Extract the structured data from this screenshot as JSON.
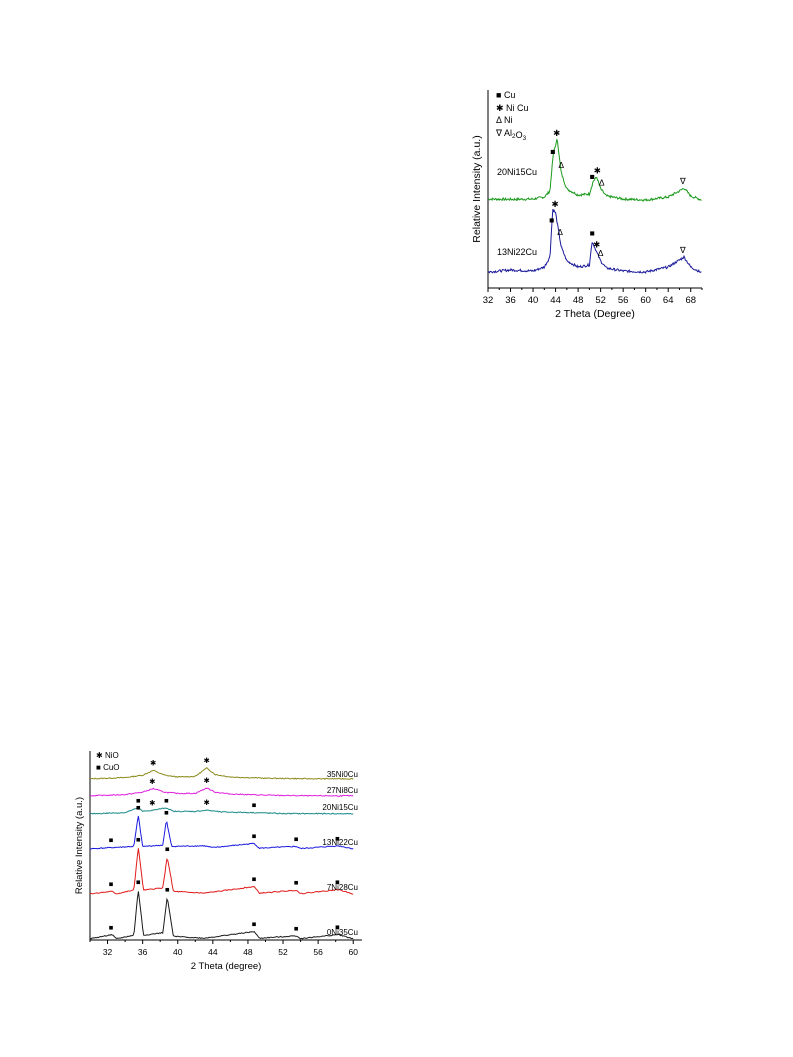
{
  "figures": [
    {
      "id": "fig1",
      "chart_data": {
        "type": "line",
        "title": "",
        "xlabel": "2 Theta (Degree)",
        "ylabel": "Relative Intensity (a.u.)",
        "xlim": [
          32,
          70
        ],
        "xticks": [
          "32",
          "36",
          "40",
          "44",
          "48",
          "52",
          "56",
          "60",
          "64",
          "68"
        ],
        "legend": [
          {
            "marker": "■",
            "label": "Cu"
          },
          {
            "marker": "✱",
            "label": "Ni Cu"
          },
          {
            "marker": "Δ",
            "label": "Ni"
          },
          {
            "marker": "∇",
            "label": "Al2O3"
          }
        ],
        "series": [
          {
            "name": "20Ni15Cu",
            "color": "#1a9a1a",
            "points": [
              [
                32,
                0.3
              ],
              [
                36,
                0.28
              ],
              [
                40,
                0.3
              ],
              [
                42,
                0.4
              ],
              [
                43,
                0.7
              ],
              [
                43.6,
                2.6
              ],
              [
                44.3,
                3.3
              ],
              [
                45,
                1.6
              ],
              [
                46,
                0.8
              ],
              [
                48,
                0.5
              ],
              [
                50,
                0.55
              ],
              [
                50.7,
                1.2
              ],
              [
                51.3,
                1.4
              ],
              [
                52,
                0.8
              ],
              [
                53,
                0.45
              ],
              [
                56,
                0.3
              ],
              [
                60,
                0.25
              ],
              [
                64,
                0.4
              ],
              [
                66,
                0.7
              ],
              [
                66.8,
                0.85
              ],
              [
                68,
                0.45
              ],
              [
                70,
                0.25
              ]
            ],
            "markers": [
              {
                "x": 43.5,
                "symbol": "■"
              },
              {
                "x": 44.2,
                "symbol": "✱"
              },
              {
                "x": 45.0,
                "symbol": "Δ"
              },
              {
                "x": 50.5,
                "symbol": "■"
              },
              {
                "x": 51.4,
                "symbol": "✱"
              },
              {
                "x": 52.2,
                "symbol": "Δ"
              },
              {
                "x": 66.6,
                "symbol": "∇"
              }
            ]
          },
          {
            "name": "13Ni22Cu",
            "color": "#1a1a9a",
            "points": [
              [
                32,
                0.15
              ],
              [
                36,
                0.25
              ],
              [
                40,
                0.2
              ],
              [
                42,
                0.4
              ],
              [
                43,
                0.9
              ],
              [
                43.5,
                3.3
              ],
              [
                44,
                3.1
              ],
              [
                45,
                1.4
              ],
              [
                46,
                0.7
              ],
              [
                48,
                0.4
              ],
              [
                50,
                0.5
              ],
              [
                50.5,
                1.7
              ],
              [
                51.2,
                1.2
              ],
              [
                52,
                0.7
              ],
              [
                53,
                0.35
              ],
              [
                56,
                0.2
              ],
              [
                60,
                0.15
              ],
              [
                64,
                0.4
              ],
              [
                66,
                0.75
              ],
              [
                66.8,
                0.9
              ],
              [
                68,
                0.4
              ],
              [
                70,
                0.1
              ]
            ],
            "markers": [
              {
                "x": 43.3,
                "symbol": "■"
              },
              {
                "x": 43.9,
                "symbol": "✱"
              },
              {
                "x": 44.8,
                "symbol": "Δ"
              },
              {
                "x": 50.5,
                "symbol": "■"
              },
              {
                "x": 51.3,
                "symbol": "✱"
              },
              {
                "x": 52.0,
                "symbol": "Δ"
              },
              {
                "x": 66.6,
                "symbol": "∇"
              }
            ]
          }
        ]
      }
    },
    {
      "id": "fig2",
      "chart_data": {
        "type": "line",
        "title": "",
        "xlabel": "2 Theta (degree)",
        "ylabel": "Relative Intensity (a.u.)",
        "xlim": [
          30,
          61
        ],
        "xticks": [
          "32",
          "36",
          "40",
          "44",
          "48",
          "52",
          "56",
          "60"
        ],
        "legend": [
          {
            "marker": "✱",
            "label": "NiO"
          },
          {
            "marker": "■",
            "label": "CuO"
          }
        ],
        "series": [
          {
            "name": "35Ni0Cu",
            "color": "#8a8a1a",
            "points": [
              [
                30,
                0.1
              ],
              [
                34,
                0.2
              ],
              [
                36,
                0.4
              ],
              [
                37.2,
                0.8
              ],
              [
                38.5,
                0.4
              ],
              [
                40,
                0.25
              ],
              [
                42,
                0.3
              ],
              [
                43.3,
                1.0
              ],
              [
                44.3,
                0.45
              ],
              [
                46,
                0.25
              ],
              [
                50,
                0.15
              ],
              [
                55,
                0.1
              ],
              [
                60,
                0.1
              ]
            ],
            "markers": [
              {
                "x": 37.2,
                "symbol": "✱"
              },
              {
                "x": 43.3,
                "symbol": "✱"
              }
            ]
          },
          {
            "name": "27Ni8Cu",
            "color": "#e020e0",
            "points": [
              [
                30,
                0.1
              ],
              [
                34,
                0.2
              ],
              [
                36,
                0.4
              ],
              [
                37.2,
                0.7
              ],
              [
                38.5,
                0.4
              ],
              [
                40,
                0.3
              ],
              [
                42,
                0.3
              ],
              [
                43.3,
                0.75
              ],
              [
                44.3,
                0.4
              ],
              [
                46,
                0.25
              ],
              [
                50,
                0.15
              ],
              [
                55,
                0.1
              ],
              [
                60,
                0.1
              ]
            ],
            "markers": [
              {
                "x": 37.1,
                "symbol": "✱"
              },
              {
                "x": 43.3,
                "symbol": "✱"
              }
            ]
          },
          {
            "name": "20Ni15Cu",
            "color": "#1a8a8a",
            "points": [
              [
                30,
                0.1
              ],
              [
                34,
                0.2
              ],
              [
                35.5,
                0.6
              ],
              [
                36,
                0.3
              ],
              [
                37.2,
                0.4
              ],
              [
                38.7,
                0.6
              ],
              [
                39.5,
                0.3
              ],
              [
                42,
                0.3
              ],
              [
                43.3,
                0.4
              ],
              [
                45,
                0.25
              ],
              [
                48.7,
                0.2
              ],
              [
                52,
                0.12
              ],
              [
                60,
                0.1
              ]
            ],
            "markers": [
              {
                "x": 35.5,
                "symbol": "■"
              },
              {
                "x": 37.1,
                "symbol": "✱"
              },
              {
                "x": 38.7,
                "symbol": "■"
              },
              {
                "x": 43.3,
                "symbol": "✱"
              },
              {
                "x": 48.7,
                "symbol": "■"
              }
            ]
          },
          {
            "name": "13Ni22Cu",
            "color": "#1a1ae0",
            "points": [
              [
                30,
                0.1
              ],
              [
                32.5,
                0.2
              ],
              [
                35,
                0.3
              ],
              [
                35.5,
                2.9
              ],
              [
                36,
                0.3
              ],
              [
                38.3,
                0.4
              ],
              [
                38.7,
                2.5
              ],
              [
                39.3,
                0.3
              ],
              [
                43,
                0.35
              ],
              [
                44,
                0.2
              ],
              [
                48.7,
                0.55
              ],
              [
                49.3,
                0.15
              ],
              [
                53.5,
                0.3
              ],
              [
                54,
                0.12
              ],
              [
                58.3,
                0.35
              ],
              [
                60,
                0.1
              ]
            ],
            "markers": [
              {
                "x": 32.4,
                "symbol": "■"
              },
              {
                "x": 35.5,
                "symbol": "■"
              },
              {
                "x": 38.7,
                "symbol": "■"
              },
              {
                "x": 48.7,
                "symbol": "■"
              },
              {
                "x": 53.5,
                "symbol": "■"
              },
              {
                "x": 58.2,
                "symbol": "■"
              }
            ]
          },
          {
            "name": "7Ni28Cu",
            "color": "#e01a1a",
            "points": [
              [
                30,
                0.1
              ],
              [
                32.5,
                0.3
              ],
              [
                33,
                0.1
              ],
              [
                35,
                0.4
              ],
              [
                35.5,
                4.0
              ],
              [
                36.1,
                0.4
              ],
              [
                38.3,
                0.6
              ],
              [
                38.8,
                3.2
              ],
              [
                39.5,
                0.3
              ],
              [
                43,
                0.15
              ],
              [
                48.7,
                0.7
              ],
              [
                49.3,
                0.15
              ],
              [
                53.5,
                0.4
              ],
              [
                54,
                0.12
              ],
              [
                58.3,
                0.45
              ],
              [
                60,
                0.1
              ]
            ],
            "markers": [
              {
                "x": 32.4,
                "symbol": "■"
              },
              {
                "x": 35.5,
                "symbol": "■"
              },
              {
                "x": 38.8,
                "symbol": "■"
              },
              {
                "x": 48.7,
                "symbol": "■"
              },
              {
                "x": 53.5,
                "symbol": "■"
              },
              {
                "x": 58.2,
                "symbol": "■"
              }
            ]
          },
          {
            "name": "0Ni35Cu",
            "color": "#1a1a1a",
            "points": [
              [
                30,
                0.1
              ],
              [
                32.5,
                0.45
              ],
              [
                33,
                0.1
              ],
              [
                35,
                0.4
              ],
              [
                35.5,
                4.2
              ],
              [
                36.1,
                0.4
              ],
              [
                38.3,
                0.6
              ],
              [
                38.8,
                3.6
              ],
              [
                39.5,
                0.3
              ],
              [
                43,
                0.15
              ],
              [
                48.7,
                0.7
              ],
              [
                49.3,
                0.15
              ],
              [
                53.5,
                0.35
              ],
              [
                54,
                0.12
              ],
              [
                58.3,
                0.45
              ],
              [
                60,
                0.1
              ]
            ],
            "markers": [
              {
                "x": 32.4,
                "symbol": "■"
              },
              {
                "x": 35.5,
                "symbol": "■"
              },
              {
                "x": 38.8,
                "symbol": "■"
              },
              {
                "x": 48.7,
                "symbol": "■"
              },
              {
                "x": 53.5,
                "symbol": "■"
              },
              {
                "x": 58.2,
                "symbol": "■"
              }
            ]
          }
        ]
      }
    }
  ]
}
